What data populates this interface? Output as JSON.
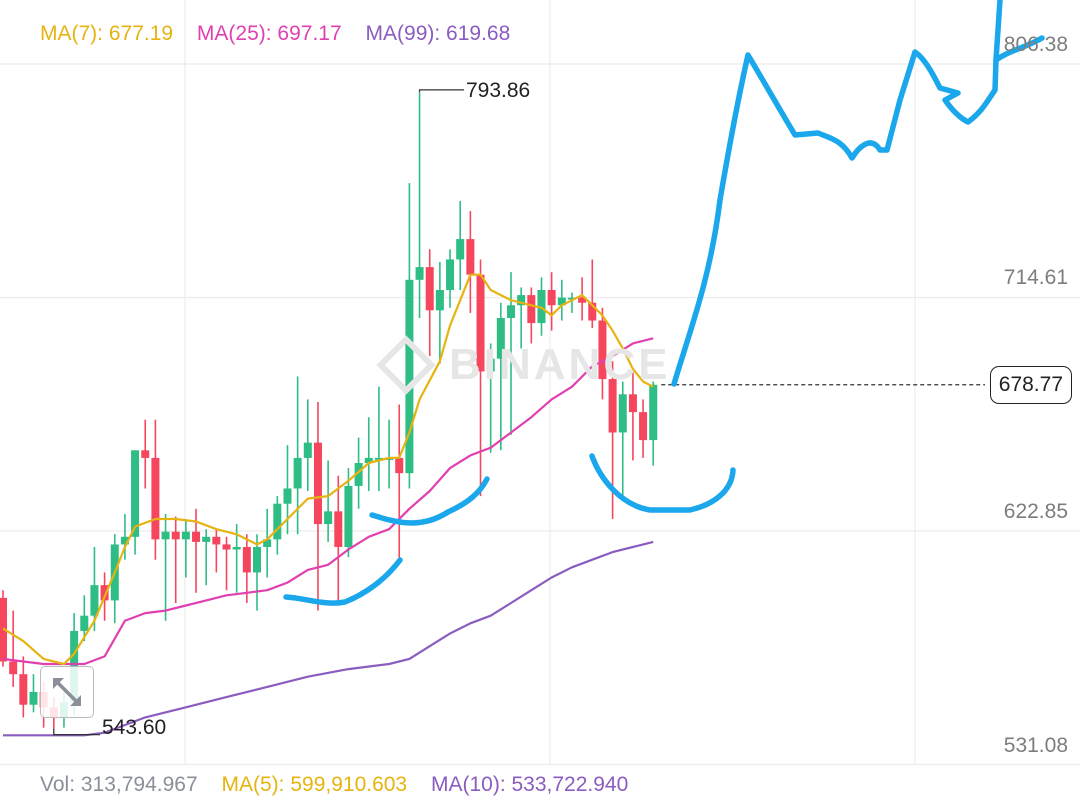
{
  "legend": {
    "ma7": "MA(7): 677.19",
    "ma25": "MA(25): 697.17",
    "ma99": "MA(99): 619.68"
  },
  "volume_legend": {
    "vol": "Vol: 313,794.967",
    "ma5": "MA(5): 599,910.603",
    "ma10": "MA(10): 533,722.940"
  },
  "watermark": "BINANCE",
  "colors": {
    "up": "#2ebd85",
    "down": "#f6465d",
    "ma7": "#e6b310",
    "ma25": "#e040b0",
    "ma99": "#8a5cc0",
    "drawing": "#1aa7ec",
    "grid": "#ececec"
  },
  "chart_data": {
    "type": "candlestick",
    "y_axis": {
      "range": [
        520,
        812
      ],
      "tick_labels": [
        "806.38",
        "714.61",
        "622.85",
        "531.08"
      ]
    },
    "last_price": "678.77",
    "high_annotation": "793.86",
    "low_annotation": "543.60",
    "candles": [
      [
        0,
        595,
        570,
        598,
        568
      ],
      [
        1,
        570,
        565,
        590,
        560
      ],
      [
        2,
        565,
        553,
        572,
        548
      ],
      [
        3,
        553,
        558,
        565,
        550
      ],
      [
        4,
        558,
        552,
        562,
        544
      ],
      [
        5,
        552,
        548,
        556,
        543.6
      ],
      [
        6,
        548,
        554,
        558,
        544
      ],
      [
        7,
        554,
        582,
        589,
        549
      ],
      [
        8,
        582,
        588,
        596,
        578
      ],
      [
        9,
        588,
        600,
        615,
        582
      ],
      [
        10,
        600,
        594,
        605,
        586
      ],
      [
        11,
        594,
        616,
        620,
        585
      ],
      [
        12,
        616,
        619,
        628,
        610
      ],
      [
        13,
        619,
        653,
        653,
        612
      ],
      [
        14,
        653,
        650,
        665,
        638
      ],
      [
        15,
        650,
        618,
        665,
        610
      ],
      [
        16,
        618,
        621,
        628,
        586
      ],
      [
        17,
        621,
        618,
        627,
        593
      ],
      [
        18,
        618,
        621,
        626,
        603
      ],
      [
        19,
        621,
        617,
        630,
        597
      ],
      [
        20,
        617,
        619,
        622,
        600
      ],
      [
        21,
        619,
        616,
        622,
        605
      ],
      [
        22,
        616,
        614,
        619,
        598
      ],
      [
        23,
        614,
        615,
        624,
        597
      ],
      [
        24,
        615,
        605,
        620,
        593
      ],
      [
        25,
        605,
        615,
        620,
        590
      ],
      [
        26,
        615,
        618,
        630,
        603
      ],
      [
        27,
        618,
        632,
        635,
        612
      ],
      [
        28,
        632,
        638,
        655,
        620
      ],
      [
        29,
        638,
        650,
        682,
        620
      ],
      [
        30,
        650,
        656,
        673,
        637
      ],
      [
        31,
        656,
        624,
        672,
        590
      ],
      [
        32,
        624,
        629,
        649,
        617
      ],
      [
        33,
        629,
        615,
        643,
        592
      ],
      [
        34,
        615,
        639,
        646,
        611
      ],
      [
        35,
        639,
        648,
        658,
        630
      ],
      [
        36,
        648,
        650,
        666,
        637
      ],
      [
        37,
        650,
        650,
        678,
        637
      ],
      [
        38,
        650,
        650,
        665,
        638
      ],
      [
        39,
        650,
        644,
        671,
        610
      ],
      [
        40,
        644,
        720,
        758,
        638
      ],
      [
        41,
        720,
        725,
        793.86,
        705
      ],
      [
        42,
        725,
        708,
        732,
        690
      ],
      [
        43,
        708,
        716,
        727,
        687
      ],
      [
        44,
        716,
        728,
        732,
        709
      ],
      [
        45,
        728,
        736,
        751,
        716
      ],
      [
        46,
        736,
        722,
        747,
        707
      ],
      [
        47,
        722,
        684,
        728,
        635
      ],
      [
        48,
        684,
        689,
        695,
        652
      ],
      [
        49,
        689,
        705,
        711,
        653
      ],
      [
        50,
        705,
        710,
        723,
        659
      ],
      [
        51,
        710,
        714,
        717,
        693
      ],
      [
        52,
        714,
        703,
        717,
        695
      ],
      [
        53,
        703,
        716,
        721,
        698
      ],
      [
        54,
        716,
        710,
        723,
        700
      ],
      [
        55,
        710,
        713,
        720,
        704
      ],
      [
        56,
        713,
        713,
        715,
        707
      ],
      [
        57,
        713,
        711,
        721,
        704
      ],
      [
        58,
        711,
        704,
        728,
        701
      ],
      [
        59,
        704,
        681,
        709,
        673
      ],
      [
        60,
        681,
        660,
        688,
        626
      ],
      [
        61,
        660,
        675,
        680,
        634
      ],
      [
        62,
        675,
        668,
        684,
        649
      ],
      [
        63,
        668,
        657,
        673,
        650
      ],
      [
        64,
        657,
        678.77,
        680,
        647
      ]
    ],
    "ma7": [
      [
        0,
        583
      ],
      [
        2,
        578
      ],
      [
        4,
        571
      ],
      [
        6,
        569
      ],
      [
        7,
        573
      ],
      [
        9,
        586
      ],
      [
        11,
        605
      ],
      [
        12,
        615
      ],
      [
        13,
        623
      ],
      [
        15,
        626
      ],
      [
        17,
        626
      ],
      [
        19,
        625
      ],
      [
        21,
        622
      ],
      [
        23,
        620
      ],
      [
        25,
        616
      ],
      [
        26,
        618
      ],
      [
        28,
        626
      ],
      [
        30,
        634
      ],
      [
        32,
        635
      ],
      [
        34,
        641
      ],
      [
        36,
        648
      ],
      [
        38,
        650
      ],
      [
        39,
        650
      ],
      [
        40,
        660
      ],
      [
        41,
        673
      ],
      [
        43,
        688
      ],
      [
        44,
        702
      ],
      [
        45,
        712
      ],
      [
        46,
        722
      ],
      [
        47,
        722
      ],
      [
        48,
        716
      ],
      [
        50,
        712
      ],
      [
        52,
        710
      ],
      [
        53,
        709
      ],
      [
        54,
        706
      ],
      [
        55,
        710
      ],
      [
        56,
        712
      ],
      [
        57,
        714
      ],
      [
        58,
        710
      ],
      [
        59,
        706
      ],
      [
        60,
        700
      ],
      [
        61,
        693
      ],
      [
        62,
        685
      ],
      [
        63,
        680
      ],
      [
        64,
        678
      ]
    ],
    "ma25": [
      [
        0,
        571
      ],
      [
        2,
        570
      ],
      [
        4,
        569
      ],
      [
        6,
        569
      ],
      [
        8,
        569
      ],
      [
        10,
        572
      ],
      [
        12,
        586
      ],
      [
        14,
        589
      ],
      [
        16,
        590
      ],
      [
        18,
        592
      ],
      [
        20,
        594
      ],
      [
        22,
        596
      ],
      [
        24,
        597
      ],
      [
        26,
        598
      ],
      [
        28,
        601
      ],
      [
        30,
        606
      ],
      [
        32,
        608
      ],
      [
        34,
        614
      ],
      [
        36,
        619
      ],
      [
        38,
        622
      ],
      [
        40,
        630
      ],
      [
        42,
        637
      ],
      [
        44,
        646
      ],
      [
        46,
        651
      ],
      [
        48,
        654
      ],
      [
        50,
        660
      ],
      [
        52,
        666
      ],
      [
        54,
        673
      ],
      [
        56,
        678
      ],
      [
        58,
        686
      ],
      [
        60,
        690
      ],
      [
        62,
        695
      ],
      [
        64,
        697
      ]
    ],
    "ma99": [
      [
        0,
        541
      ],
      [
        3,
        541
      ],
      [
        6,
        541
      ],
      [
        8,
        541
      ],
      [
        10,
        542
      ],
      [
        14,
        548
      ],
      [
        18,
        552
      ],
      [
        22,
        556
      ],
      [
        26,
        560
      ],
      [
        30,
        564
      ],
      [
        34,
        567
      ],
      [
        38,
        569
      ],
      [
        40,
        571
      ],
      [
        42,
        576
      ],
      [
        44,
        581
      ],
      [
        46,
        585
      ],
      [
        48,
        588
      ],
      [
        50,
        593
      ],
      [
        52,
        598
      ],
      [
        54,
        603
      ],
      [
        56,
        607
      ],
      [
        58,
        610
      ],
      [
        60,
        613
      ],
      [
        62,
        615
      ],
      [
        64,
        617
      ]
    ]
  }
}
